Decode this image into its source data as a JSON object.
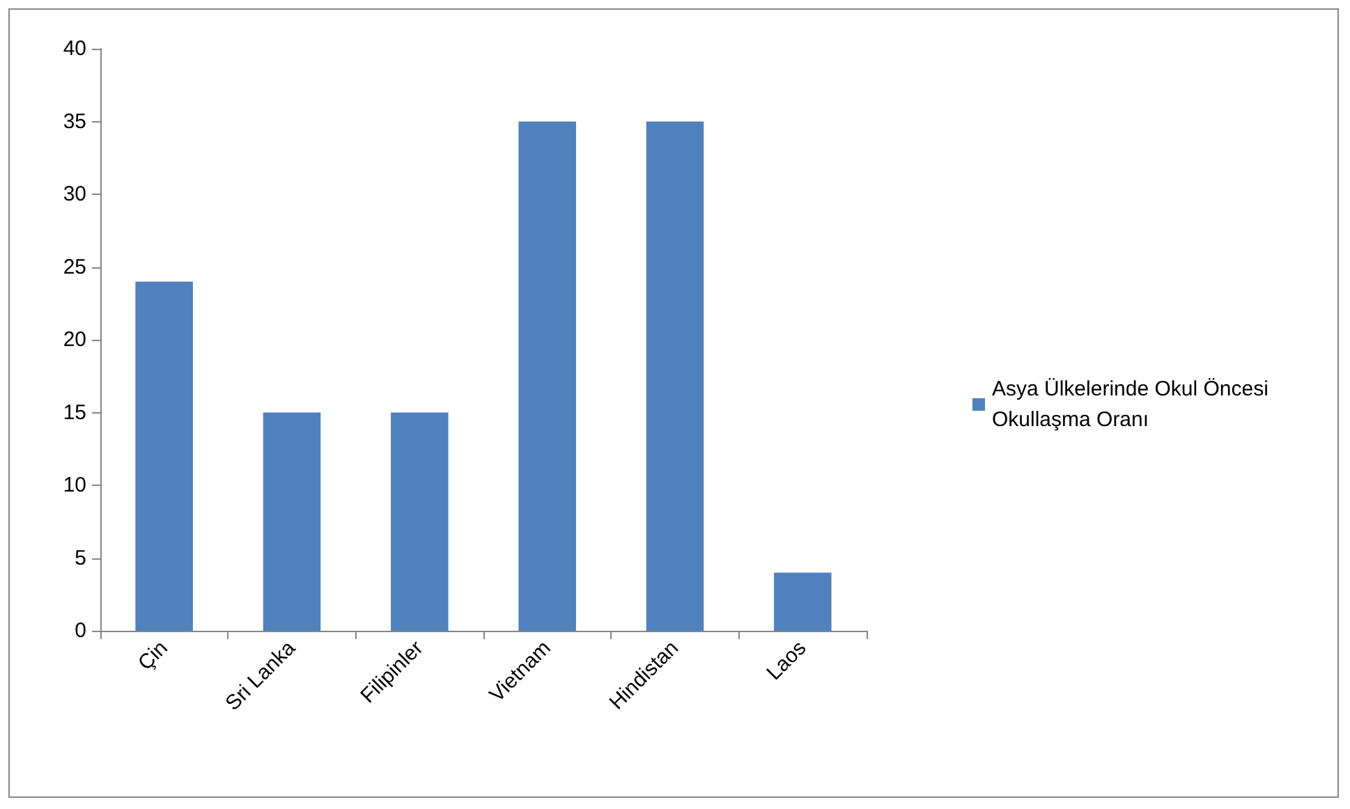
{
  "chart_data": {
    "type": "bar",
    "categories": [
      "Çin",
      "Sri Lanka",
      "Filipinler",
      "Vietnam",
      "Hindistan",
      "Laos"
    ],
    "series": [
      {
        "name": "Asya Ülkelerinde Okul Öncesi Okullaşma Oranı",
        "color": "#4f81bd",
        "values": [
          24,
          15,
          15,
          35,
          35,
          4
        ]
      }
    ],
    "ylim": [
      0,
      40
    ],
    "yticks": [
      0,
      5,
      10,
      15,
      20,
      25,
      30,
      35,
      40
    ],
    "grid": false,
    "legend": "right"
  }
}
